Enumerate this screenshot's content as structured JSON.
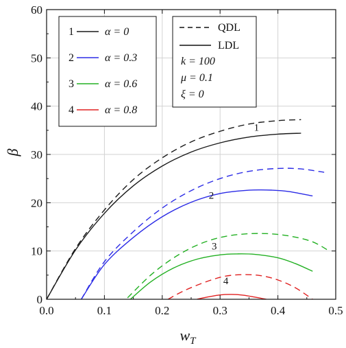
{
  "chart_data": {
    "type": "line",
    "xlabel": "w",
    "xlabel_sub": "T",
    "ylabel": "β",
    "xlim": [
      0,
      0.5
    ],
    "ylim": [
      0,
      60
    ],
    "xticks": [
      "0.0",
      "0.1",
      "0.2",
      "0.3",
      "0.4",
      "0.5"
    ],
    "yticks": [
      "0",
      "10",
      "20",
      "30",
      "40",
      "50",
      "60"
    ],
    "grid": true,
    "legend_alpha": {
      "placement": "top-left",
      "entries": [
        {
          "num": "1",
          "label": "α = 0",
          "color": "#1a1a1a"
        },
        {
          "num": "2",
          "label": "α = 0.3",
          "color": "#2b2be6"
        },
        {
          "num": "3",
          "label": "α = 0.6",
          "color": "#22b022"
        },
        {
          "num": "4",
          "label": "α = 0.8",
          "color": "#e02020"
        }
      ]
    },
    "legend_style": {
      "placement": "top-center",
      "entries": [
        {
          "label": "QDL",
          "dash": true
        },
        {
          "label": "LDL",
          "dash": false
        }
      ],
      "params": [
        "k = 100",
        "μ = 0.1",
        "ξ =  0"
      ]
    },
    "series": [
      {
        "curve": "1",
        "style": "QDL",
        "color": "#1a1a1a",
        "dash": true,
        "points": [
          [
            0.0,
            0.0
          ],
          [
            0.05,
            10.5
          ],
          [
            0.1,
            18.5
          ],
          [
            0.15,
            24.8
          ],
          [
            0.2,
            29.3
          ],
          [
            0.25,
            32.6
          ],
          [
            0.3,
            34.8
          ],
          [
            0.35,
            36.3
          ],
          [
            0.4,
            37.0
          ],
          [
            0.44,
            37.2
          ]
        ]
      },
      {
        "curve": "1",
        "style": "LDL",
        "color": "#1a1a1a",
        "dash": false,
        "points": [
          [
            0.0,
            0.0
          ],
          [
            0.05,
            10.2
          ],
          [
            0.1,
            17.8
          ],
          [
            0.15,
            23.5
          ],
          [
            0.2,
            27.6
          ],
          [
            0.25,
            30.5
          ],
          [
            0.3,
            32.4
          ],
          [
            0.35,
            33.6
          ],
          [
            0.4,
            34.2
          ],
          [
            0.44,
            34.4
          ]
        ]
      },
      {
        "curve": "2",
        "style": "QDL",
        "color": "#2b2be6",
        "dash": true,
        "points": [
          [
            0.06,
            0.0
          ],
          [
            0.1,
            7.8
          ],
          [
            0.15,
            14.0
          ],
          [
            0.2,
            18.9
          ],
          [
            0.25,
            22.5
          ],
          [
            0.3,
            25.0
          ],
          [
            0.35,
            26.5
          ],
          [
            0.4,
            27.1
          ],
          [
            0.44,
            27.0
          ],
          [
            0.48,
            26.3
          ]
        ]
      },
      {
        "curve": "2",
        "style": "LDL",
        "color": "#2b2be6",
        "dash": false,
        "points": [
          [
            0.06,
            0.0
          ],
          [
            0.1,
            7.2
          ],
          [
            0.15,
            12.8
          ],
          [
            0.2,
            17.1
          ],
          [
            0.25,
            20.1
          ],
          [
            0.3,
            21.9
          ],
          [
            0.35,
            22.6
          ],
          [
            0.39,
            22.6
          ],
          [
            0.42,
            22.3
          ],
          [
            0.46,
            21.4
          ]
        ]
      },
      {
        "curve": "3",
        "style": "QDL",
        "color": "#22b022",
        "dash": true,
        "points": [
          [
            0.14,
            0.3
          ],
          [
            0.18,
            5.0
          ],
          [
            0.22,
            8.6
          ],
          [
            0.26,
            11.2
          ],
          [
            0.3,
            12.8
          ],
          [
            0.34,
            13.5
          ],
          [
            0.38,
            13.6
          ],
          [
            0.42,
            13.1
          ],
          [
            0.46,
            11.9
          ],
          [
            0.49,
            9.9
          ]
        ]
      },
      {
        "curve": "3",
        "style": "LDL",
        "color": "#22b022",
        "dash": false,
        "points": [
          [
            0.145,
            0.0
          ],
          [
            0.18,
            3.6
          ],
          [
            0.22,
            6.5
          ],
          [
            0.26,
            8.3
          ],
          [
            0.3,
            9.2
          ],
          [
            0.33,
            9.4
          ],
          [
            0.36,
            9.3
          ],
          [
            0.4,
            8.6
          ],
          [
            0.43,
            7.4
          ],
          [
            0.46,
            5.8
          ]
        ]
      },
      {
        "curve": "4",
        "style": "QDL",
        "color": "#e02020",
        "dash": true,
        "points": [
          [
            0.21,
            0.0
          ],
          [
            0.24,
            1.9
          ],
          [
            0.28,
            3.8
          ],
          [
            0.31,
            4.8
          ],
          [
            0.34,
            5.1
          ],
          [
            0.37,
            4.9
          ],
          [
            0.4,
            4.0
          ],
          [
            0.43,
            2.4
          ],
          [
            0.46,
            0.0
          ]
        ]
      },
      {
        "curve": "4",
        "style": "LDL",
        "color": "#e02020",
        "dash": false,
        "points": [
          [
            0.26,
            0.0
          ],
          [
            0.28,
            0.5
          ],
          [
            0.3,
            0.9
          ],
          [
            0.32,
            1.0
          ],
          [
            0.34,
            0.85
          ],
          [
            0.36,
            0.45
          ],
          [
            0.38,
            0.0
          ]
        ]
      }
    ],
    "curve_labels": [
      {
        "text": "1",
        "x": 0.363,
        "y": 34.9
      },
      {
        "text": "2",
        "x": 0.285,
        "y": 20.8
      },
      {
        "text": "3",
        "x": 0.29,
        "y": 10.3
      },
      {
        "text": "4",
        "x": 0.31,
        "y": 3.1
      }
    ]
  }
}
